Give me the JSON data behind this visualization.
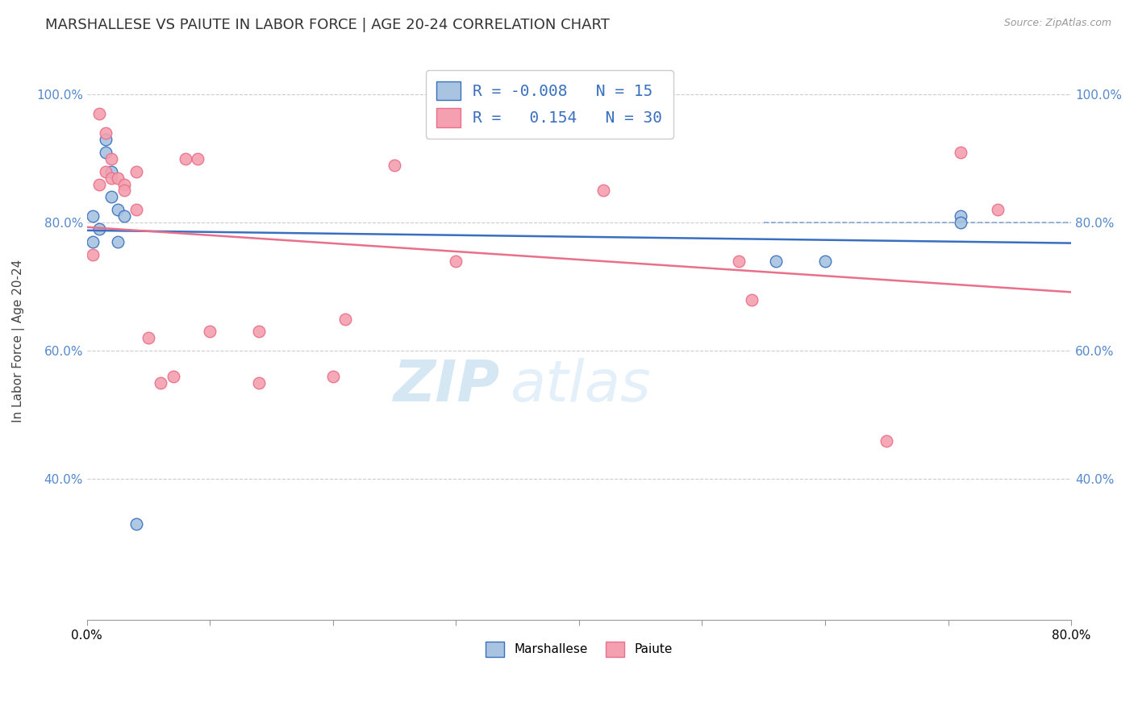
{
  "title": "MARSHALLESE VS PAIUTE IN LABOR FORCE | AGE 20-24 CORRELATION CHART",
  "source": "Source: ZipAtlas.com",
  "ylabel": "In Labor Force | Age 20-24",
  "xlim": [
    0.0,
    0.8
  ],
  "ylim": [
    0.18,
    1.05
  ],
  "yticks": [
    0.4,
    0.6,
    0.8,
    1.0
  ],
  "ytick_labels": [
    "40.0%",
    "60.0%",
    "80.0%",
    "100.0%"
  ],
  "marshallese_color": "#a8c4e0",
  "paiute_color": "#f4a0b0",
  "marshallese_line_color": "#3a6fbf",
  "paiute_line_color": "#e8708a",
  "legend_R_marshallese": "-0.008",
  "legend_N_marshallese": "15",
  "legend_R_paiute": "0.154",
  "legend_N_paiute": "30",
  "watermark_zip": "ZIP",
  "watermark_atlas": "atlas",
  "marshallese_x": [
    0.005,
    0.005,
    0.01,
    0.015,
    0.015,
    0.02,
    0.02,
    0.025,
    0.025,
    0.03,
    0.56,
    0.6,
    0.71,
    0.71,
    0.04
  ],
  "marshallese_y": [
    0.81,
    0.77,
    0.79,
    0.93,
    0.91,
    0.88,
    0.84,
    0.82,
    0.77,
    0.81,
    0.74,
    0.74,
    0.81,
    0.8,
    0.33
  ],
  "paiute_x": [
    0.005,
    0.01,
    0.01,
    0.015,
    0.015,
    0.02,
    0.02,
    0.025,
    0.03,
    0.03,
    0.04,
    0.04,
    0.05,
    0.06,
    0.07,
    0.08,
    0.09,
    0.1,
    0.14,
    0.14,
    0.2,
    0.21,
    0.25,
    0.3,
    0.42,
    0.53,
    0.54,
    0.65,
    0.71,
    0.74
  ],
  "paiute_y": [
    0.75,
    0.97,
    0.86,
    0.94,
    0.88,
    0.9,
    0.87,
    0.87,
    0.86,
    0.85,
    0.88,
    0.82,
    0.62,
    0.55,
    0.56,
    0.9,
    0.9,
    0.63,
    0.63,
    0.55,
    0.56,
    0.65,
    0.89,
    0.74,
    0.85,
    0.74,
    0.68,
    0.46,
    0.91,
    0.82
  ],
  "title_fontsize": 13,
  "axis_label_fontsize": 11,
  "tick_fontsize": 11,
  "legend_fontsize": 14,
  "watermark_fontsize": 52,
  "background_color": "#ffffff"
}
